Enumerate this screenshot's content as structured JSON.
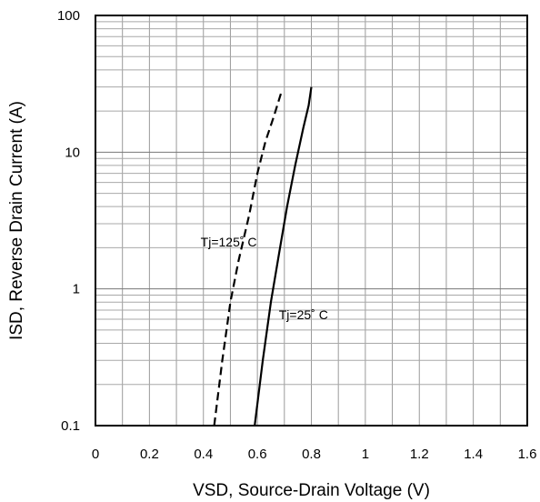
{
  "chart_data": {
    "type": "line",
    "title": "",
    "xlabel": "VSD, Source-Drain Voltage (V)",
    "ylabel": "ISD, Reverse Drain Current (A)",
    "xlim": [
      0,
      1.6
    ],
    "ylim": [
      0.1,
      100
    ],
    "y_scale": "log",
    "grid": true,
    "x_ticks": [
      "0",
      "0.2",
      "0.4",
      "0.6",
      "0.8",
      "1",
      "1.2",
      "1.4",
      "1.6"
    ],
    "y_ticks": [
      "0.1",
      "1",
      "10",
      "100"
    ],
    "series": [
      {
        "name": "Tj=125˚ C",
        "style": "dashed",
        "color": "#000000",
        "x": [
          0.44,
          0.47,
          0.5,
          0.53,
          0.57,
          0.6,
          0.63,
          0.66,
          0.69
        ],
        "y": [
          0.1,
          0.3,
          0.8,
          1.6,
          3.5,
          7,
          12,
          18,
          28
        ]
      },
      {
        "name": "Tj=25˚ C",
        "style": "solid",
        "color": "#000000",
        "x": [
          0.59,
          0.62,
          0.65,
          0.68,
          0.71,
          0.74,
          0.77,
          0.79,
          0.8
        ],
        "y": [
          0.1,
          0.3,
          0.8,
          1.8,
          4,
          8,
          15,
          22,
          30
        ]
      }
    ],
    "annotations": [
      {
        "text": "Tj=125˚ C",
        "x": 0.43,
        "y": 2.2
      },
      {
        "text": "Tj=25˚ C",
        "x": 0.72,
        "y": 0.65
      }
    ]
  }
}
